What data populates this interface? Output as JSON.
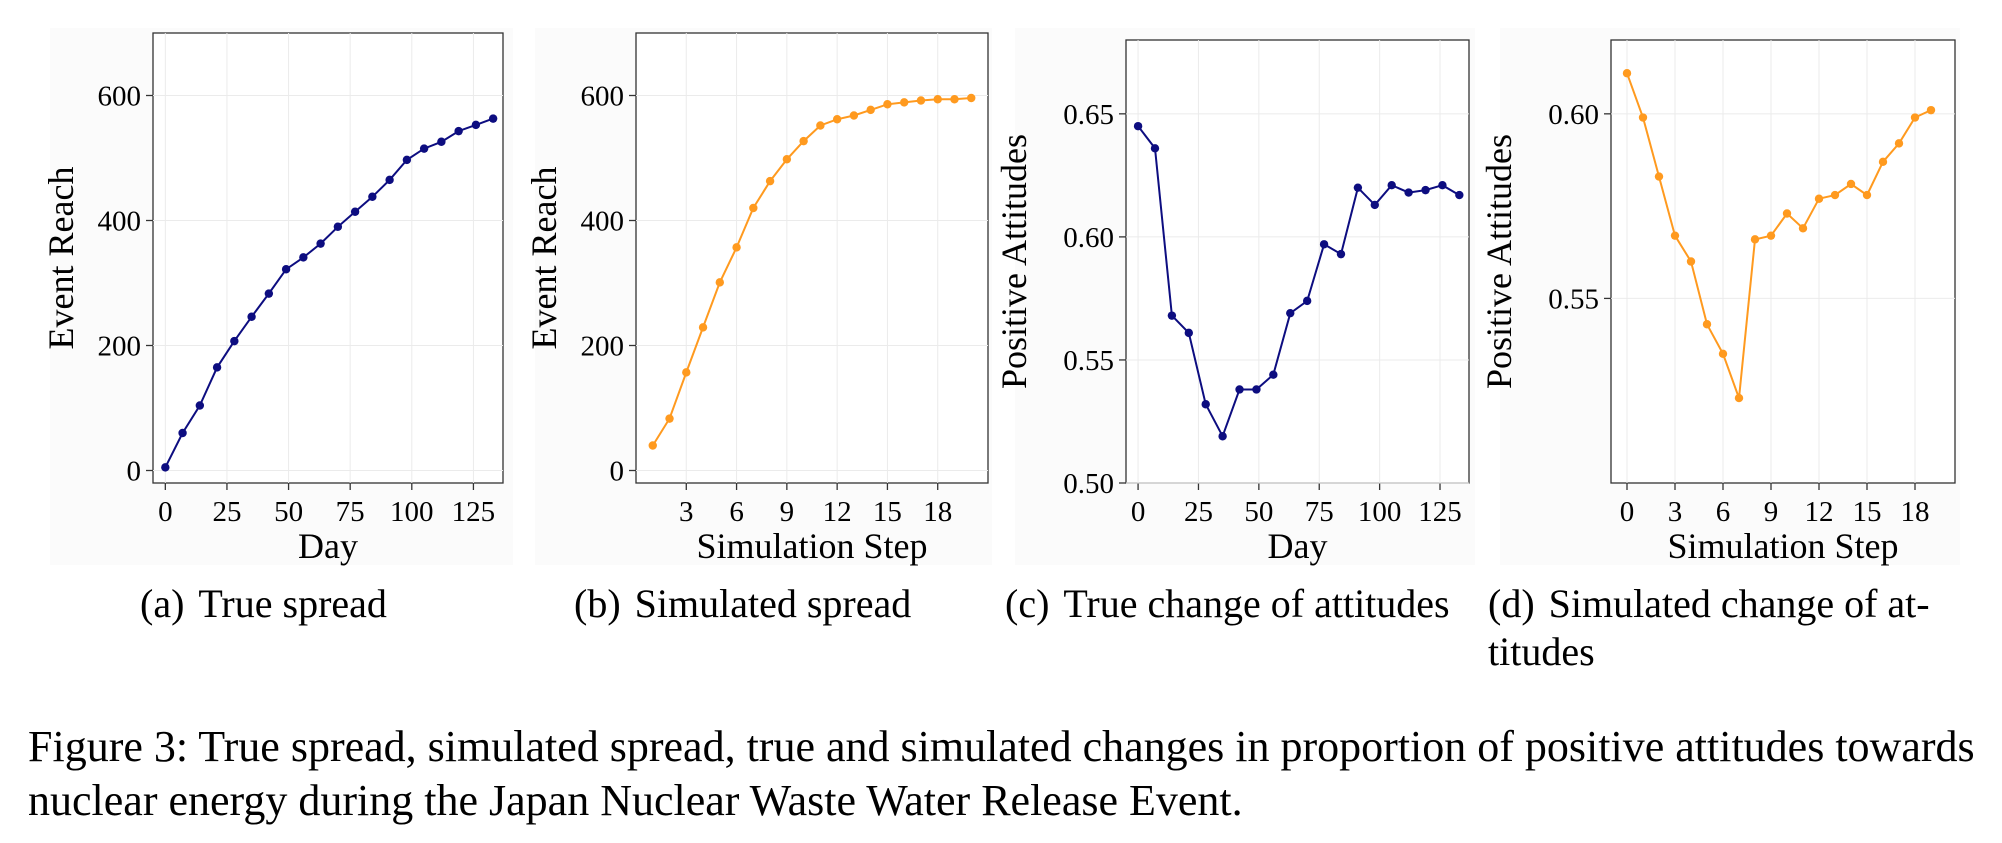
{
  "chart_data": [
    {
      "id": "a",
      "type": "line",
      "color": "#0d0d80",
      "xlabel": "Day",
      "ylabel": "Event Reach",
      "xlim": [
        -5,
        137
      ],
      "ylim": [
        -20,
        700
      ],
      "xticks": [
        0,
        25,
        50,
        75,
        100,
        125
      ],
      "yticks": [
        0,
        200,
        400,
        600
      ],
      "ytick_labels": [
        "0",
        "200",
        "400",
        "600"
      ],
      "x": [
        0,
        7,
        14,
        21,
        28,
        35,
        42,
        49,
        56,
        63,
        70,
        77,
        84,
        91,
        98,
        105,
        112,
        119,
        126,
        133
      ],
      "values": [
        5,
        60,
        104,
        165,
        207,
        246,
        283,
        322,
        341,
        363,
        390,
        414,
        438,
        465,
        497,
        515,
        526,
        543,
        553,
        563
      ]
    },
    {
      "id": "b",
      "type": "line",
      "color": "#ff9a1f",
      "xlabel": "Simulation Step",
      "ylabel": "Event Reach",
      "xlim": [
        0,
        21
      ],
      "ylim": [
        -20,
        700
      ],
      "xticks": [
        3,
        6,
        9,
        12,
        15,
        18
      ],
      "yticks": [
        0,
        200,
        400,
        600
      ],
      "ytick_labels": [
        "0",
        "200",
        "400",
        "600"
      ],
      "x": [
        1,
        2,
        3,
        4,
        5,
        6,
        7,
        8,
        9,
        10,
        11,
        12,
        13,
        14,
        15,
        16,
        17,
        18,
        19,
        20
      ],
      "values": [
        40,
        83,
        157,
        229,
        301,
        357,
        420,
        463,
        498,
        527,
        552,
        562,
        568,
        577,
        586,
        589,
        592,
        594,
        594,
        596
      ]
    },
    {
      "id": "c",
      "type": "line",
      "color": "#0d0d80",
      "xlabel": "Day",
      "ylabel": "Positive Attitudes",
      "xlim": [
        -5,
        137
      ],
      "ylim": [
        0.5,
        0.68
      ],
      "xticks": [
        0,
        25,
        50,
        75,
        100,
        125
      ],
      "yticks": [
        0.5,
        0.55,
        0.6,
        0.65
      ],
      "ytick_labels": [
        "0.50",
        "0.55",
        "0.60",
        "0.65"
      ],
      "x": [
        0,
        7,
        14,
        21,
        28,
        35,
        42,
        49,
        56,
        63,
        70,
        77,
        84,
        91,
        98,
        105,
        112,
        119,
        126,
        133
      ],
      "values": [
        0.645,
        0.636,
        0.568,
        0.561,
        0.532,
        0.519,
        0.538,
        0.538,
        0.544,
        0.569,
        0.574,
        0.597,
        0.593,
        0.62,
        0.613,
        0.621,
        0.618,
        0.619,
        0.621,
        0.617
      ]
    },
    {
      "id": "d",
      "type": "line",
      "color": "#ff9a1f",
      "xlabel": "Simulation Step",
      "ylabel": "Positive Attitudes",
      "xlim": [
        -1,
        20.5
      ],
      "ylim": [
        0.5,
        0.62
      ],
      "xticks": [
        0,
        3,
        6,
        9,
        12,
        15,
        18
      ],
      "yticks": [
        0.55,
        0.6
      ],
      "ytick_labels": [
        "0.55",
        "0.60"
      ],
      "x": [
        0,
        1,
        2,
        3,
        4,
        5,
        6,
        7,
        8,
        9,
        10,
        11,
        12,
        13,
        14,
        15,
        16,
        17,
        18,
        19
      ],
      "values": [
        0.611,
        0.599,
        0.583,
        0.567,
        0.56,
        0.543,
        0.535,
        0.523,
        0.566,
        0.567,
        0.573,
        0.569,
        0.577,
        0.578,
        0.581,
        0.578,
        0.587,
        0.592,
        0.599,
        0.601
      ]
    }
  ],
  "subcaptions": [
    {
      "label": "(a)",
      "text": "True spread"
    },
    {
      "label": "(b)",
      "text": "Simulated spread"
    },
    {
      "label": "(c)",
      "text": "True change of attitudes"
    },
    {
      "label": "(d)",
      "text": "Simulated change of at-titudes"
    }
  ],
  "figure_caption": "Figure 3: True spread, simulated spread, true and simulated changes in proportion of positive attitudes towards nuclear energy during the Japan Nuclear Waste Water Release Event."
}
